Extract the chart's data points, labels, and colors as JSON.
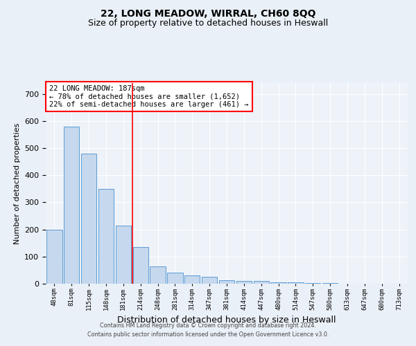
{
  "title1": "22, LONG MEADOW, WIRRAL, CH60 8QQ",
  "title2": "Size of property relative to detached houses in Heswall",
  "xlabel": "Distribution of detached houses by size in Heswall",
  "ylabel": "Number of detached properties",
  "categories": [
    "48sqm",
    "81sqm",
    "115sqm",
    "148sqm",
    "181sqm",
    "214sqm",
    "248sqm",
    "281sqm",
    "314sqm",
    "347sqm",
    "381sqm",
    "414sqm",
    "447sqm",
    "480sqm",
    "514sqm",
    "547sqm",
    "580sqm",
    "613sqm",
    "647sqm",
    "680sqm",
    "713sqm"
  ],
  "values": [
    200,
    580,
    480,
    350,
    215,
    135,
    65,
    42,
    30,
    25,
    14,
    10,
    10,
    5,
    4,
    3,
    2,
    0,
    0,
    0,
    0
  ],
  "bar_color": "#c5d8ed",
  "bar_edge_color": "#5b9bd5",
  "red_line_x": 4.52,
  "ylim": [
    0,
    740
  ],
  "yticks": [
    0,
    100,
    200,
    300,
    400,
    500,
    600,
    700
  ],
  "annotation_title": "22 LONG MEADOW: 187sqm",
  "annotation_line1": "← 78% of detached houses are smaller (1,652)",
  "annotation_line2": "22% of semi-detached houses are larger (461) →",
  "footer1": "Contains HM Land Registry data © Crown copyright and database right 2024.",
  "footer2": "Contains public sector information licensed under the Open Government Licence v3.0.",
  "bg_color": "#eaf0f7",
  "plot_bg_color": "#eef3f9",
  "grid_color": "#ffffff",
  "title_fontsize": 10,
  "subtitle_fontsize": 9,
  "ylabel_fontsize": 8,
  "xlabel_fontsize": 9
}
